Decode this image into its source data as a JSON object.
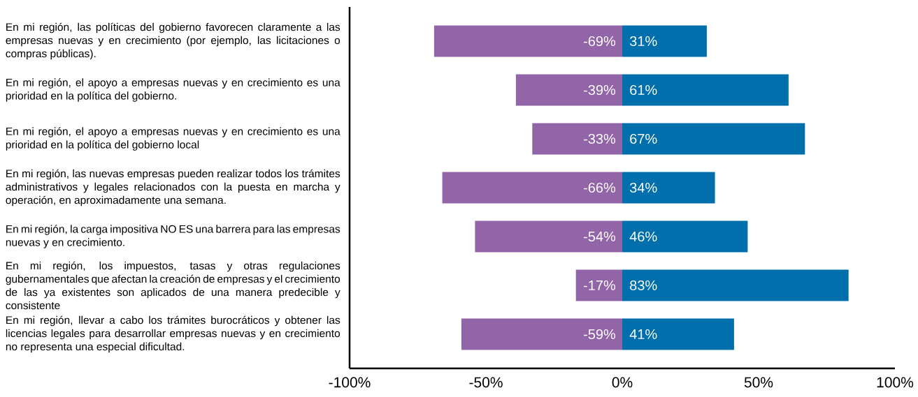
{
  "chart_data": {
    "type": "bar",
    "orientation": "horizontal",
    "stacked": true,
    "categories": [
      "En mi región, las políticas del gobierno favorecen claramente a las empresas nuevas y en crecimiento (por ejemplo, las licitaciones o compras públicas).",
      "En mi región, el apoyo a empresas nuevas y en crecimiento es una prioridad en la política del gobierno.",
      "En mi región, el apoyo a empresas nuevas y en crecimiento es una prioridad en la política del gobierno local",
      "En mi región, las nuevas empresas pueden realizar todos los trámites administrativos y legales relacionados con la puesta en marcha y operación, en aproximadamente una semana.",
      "En mi región, la carga impositiva NO ES una barrera para las empresas nuevas y en crecimiento.",
      "En mi región, los impuestos, tasas y otras regulaciones gubernamentales que afectan la creación de empresas y el crecimiento de las ya existentes son aplicados de una manera predecible y consistente",
      "En mi región, llevar a cabo los trámites burocráticos y obtener las licencias legales para desarrollar empresas nuevas y en crecimiento no representa una especial dificultad."
    ],
    "series": [
      {
        "color": "#9264a8",
        "values": [
          -69,
          -39,
          -33,
          -66,
          -54,
          -17,
          -59
        ],
        "value_labels": [
          "-69%",
          "-39%",
          "-33%",
          "-66%",
          "-54%",
          "-17%",
          "-59%"
        ]
      },
      {
        "color": "#006fac",
        "values": [
          31,
          61,
          67,
          34,
          46,
          83,
          41
        ],
        "value_labels": [
          "31%",
          "61%",
          "67%",
          "34%",
          "46%",
          "83%",
          "41%"
        ]
      }
    ],
    "xlim": [
      -100,
      100
    ],
    "xticks": [
      {
        "value": -100,
        "label": "-100%"
      },
      {
        "value": -50,
        "label": "-50%"
      },
      {
        "value": 0,
        "label": "0%"
      },
      {
        "value": 50,
        "label": "50%"
      },
      {
        "value": 100,
        "label": "100%"
      }
    ]
  }
}
